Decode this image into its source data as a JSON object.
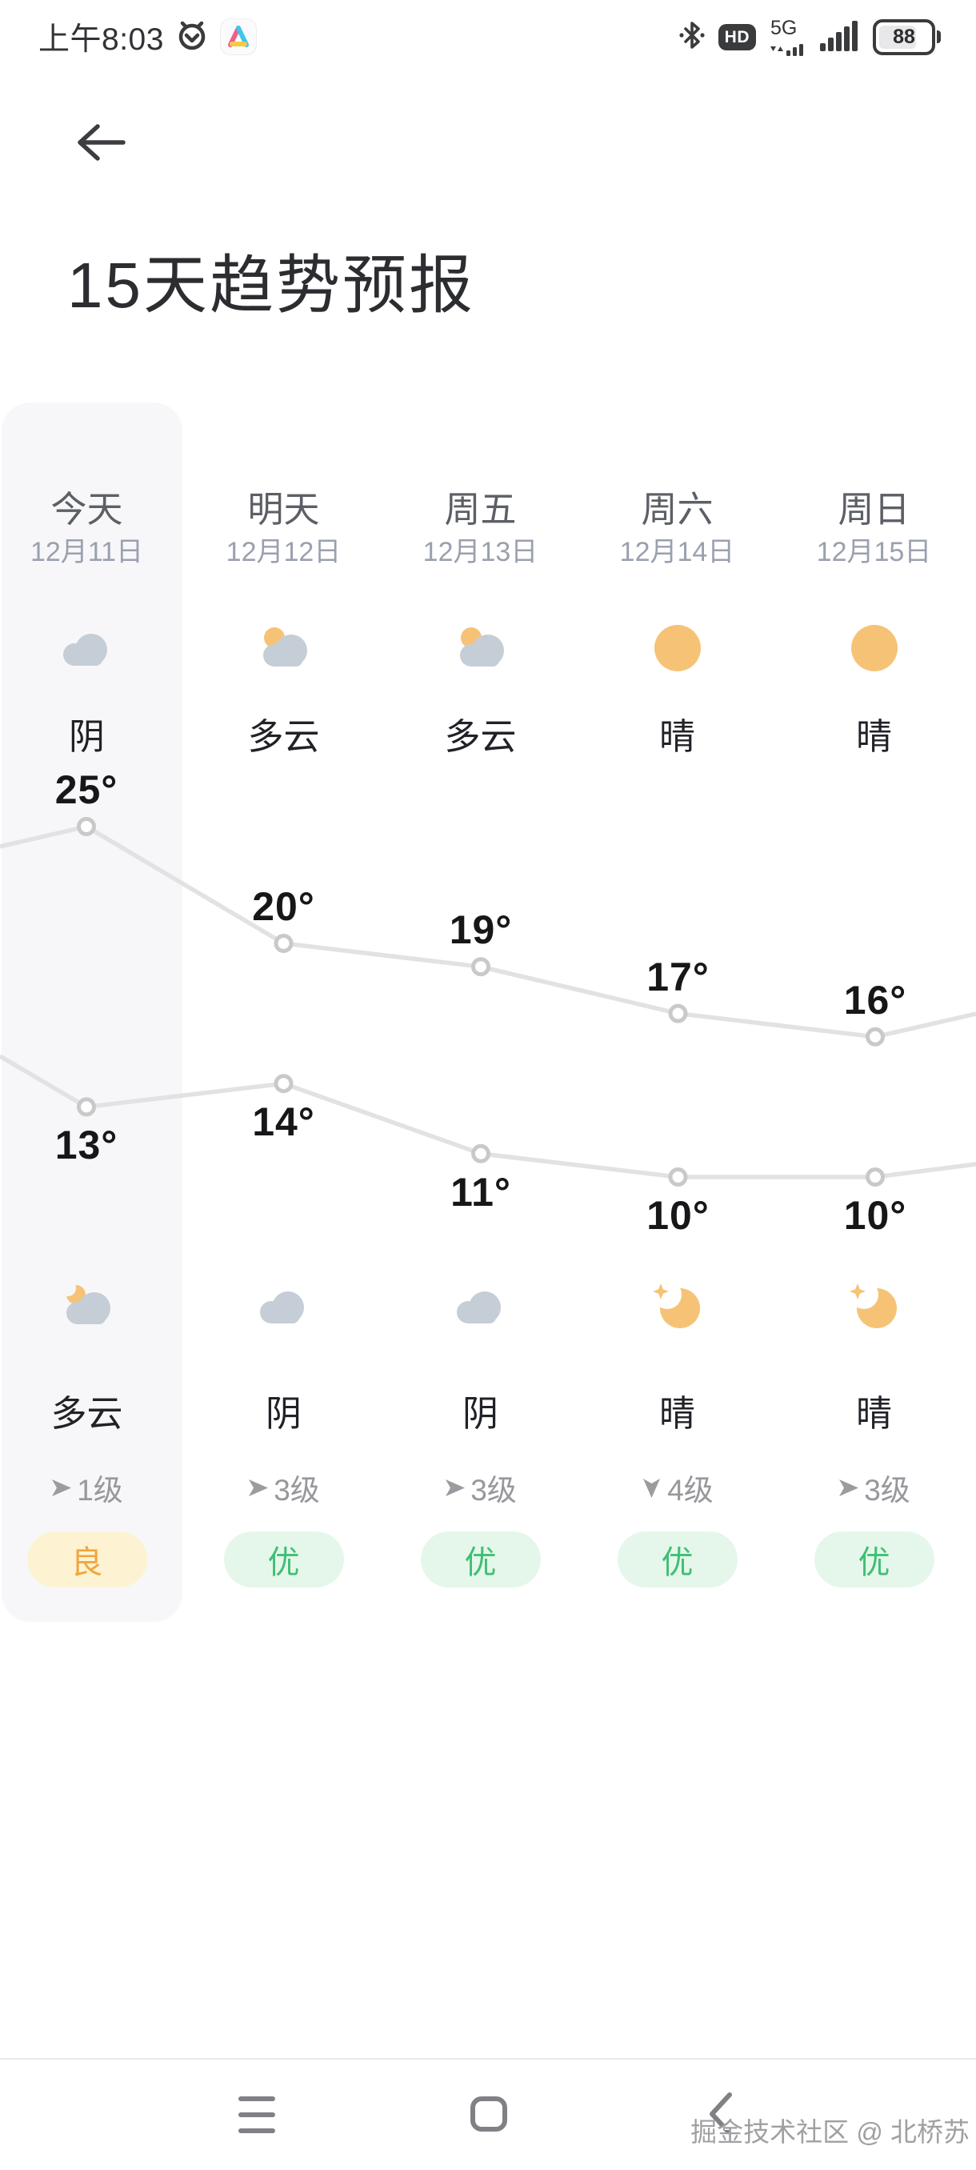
{
  "status_bar": {
    "time": "上午8:03",
    "network": "5G",
    "hd": "HD",
    "battery": "88"
  },
  "header": {
    "title": "15天趋势预报"
  },
  "forecast": {
    "columns": [
      {
        "day": "今天",
        "date": "12月11日",
        "day_icon": "overcast",
        "day_condition": "阴",
        "night_icon": "cloudy-night",
        "night_condition": "多云",
        "wind_icon": "wind-right",
        "wind_level": "1级",
        "aqi_label": "良",
        "aqi_level": "moderate",
        "high": 25,
        "low": 13,
        "highlighted": true
      },
      {
        "day": "明天",
        "date": "12月12日",
        "day_icon": "partly-cloudy-day",
        "day_condition": "多云",
        "night_icon": "overcast",
        "night_condition": "阴",
        "wind_icon": "wind-right",
        "wind_level": "3级",
        "aqi_label": "优",
        "aqi_level": "excellent",
        "high": 20,
        "low": 14,
        "highlighted": false
      },
      {
        "day": "周五",
        "date": "12月13日",
        "day_icon": "partly-cloudy-day",
        "day_condition": "多云",
        "night_icon": "overcast",
        "night_condition": "阴",
        "wind_icon": "wind-right",
        "wind_level": "3级",
        "aqi_label": "优",
        "aqi_level": "excellent",
        "high": 19,
        "low": 11,
        "highlighted": false
      },
      {
        "day": "周六",
        "date": "12月14日",
        "day_icon": "sunny",
        "day_condition": "晴",
        "night_icon": "clear-night",
        "night_condition": "晴",
        "wind_icon": "wind-down",
        "wind_level": "4级",
        "aqi_label": "优",
        "aqi_level": "excellent",
        "high": 17,
        "low": 10,
        "highlighted": false
      },
      {
        "day": "周日",
        "date": "12月15日",
        "day_icon": "sunny",
        "day_condition": "晴",
        "night_icon": "clear-night",
        "night_condition": "晴",
        "wind_icon": "wind-right",
        "wind_level": "3级",
        "aqi_label": "优",
        "aqi_level": "excellent",
        "high": 16,
        "low": 10,
        "highlighted": false
      }
    ]
  },
  "chart_data": {
    "type": "line",
    "categories": [
      "今天 12月11日",
      "明天 12月12日",
      "周五 12月13日",
      "周六 12月14日",
      "周日 12月15日"
    ],
    "series": [
      {
        "name": "day-high-temp",
        "values": [
          25,
          20,
          19,
          17,
          16
        ],
        "labels": [
          "25°",
          "20°",
          "19°",
          "17°",
          "16°"
        ]
      },
      {
        "name": "night-low-temp",
        "values": [
          13,
          14,
          11,
          10,
          10
        ],
        "labels": [
          "13°",
          "14°",
          "11°",
          "10°",
          "10°"
        ]
      }
    ],
    "unit": "°C",
    "ylim": [
      8,
      27
    ],
    "grid": false,
    "legend": "none",
    "line_color": "#e2e2e2",
    "marker": "hollow-circle",
    "marker_color": "#c9c9c9"
  },
  "colors": {
    "sun": "#f6c376",
    "cloud": "#c5ced6",
    "panel": "#f7f7f9",
    "aqi_moderate_text": "#f0a63e",
    "aqi_moderate_bg": "#fdf3d2",
    "aqi_excellent_text": "#3fbf74",
    "aqi_excellent_bg": "#e5f7ea"
  },
  "nav_bar": {
    "watermark": "掘金技术社区 @ 北桥苏"
  }
}
